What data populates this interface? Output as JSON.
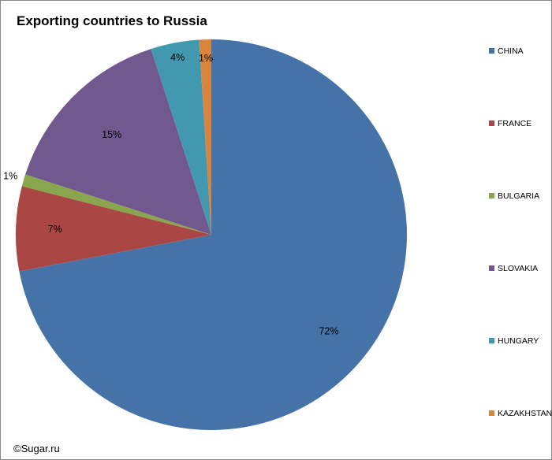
{
  "chart_data": {
    "type": "pie",
    "title": "Exporting countries to Russia",
    "categories": [
      "CHINA",
      "FRANCE",
      "BULGARIA",
      "SLOVAKIA",
      "HUNGARY",
      "KAZAKHSTAN"
    ],
    "values": [
      72,
      7,
      1,
      15,
      4,
      1
    ],
    "data_labels": [
      "72%",
      "7%",
      "1%",
      "15%",
      "4%",
      "1%"
    ],
    "colors": [
      "#4572a7",
      "#aa4643",
      "#89a54e",
      "#71588f",
      "#4198af",
      "#db843d"
    ],
    "legend": "right",
    "start_angle_deg": 0,
    "direction": "clockwise"
  },
  "copyright": "©Sugar.ru"
}
